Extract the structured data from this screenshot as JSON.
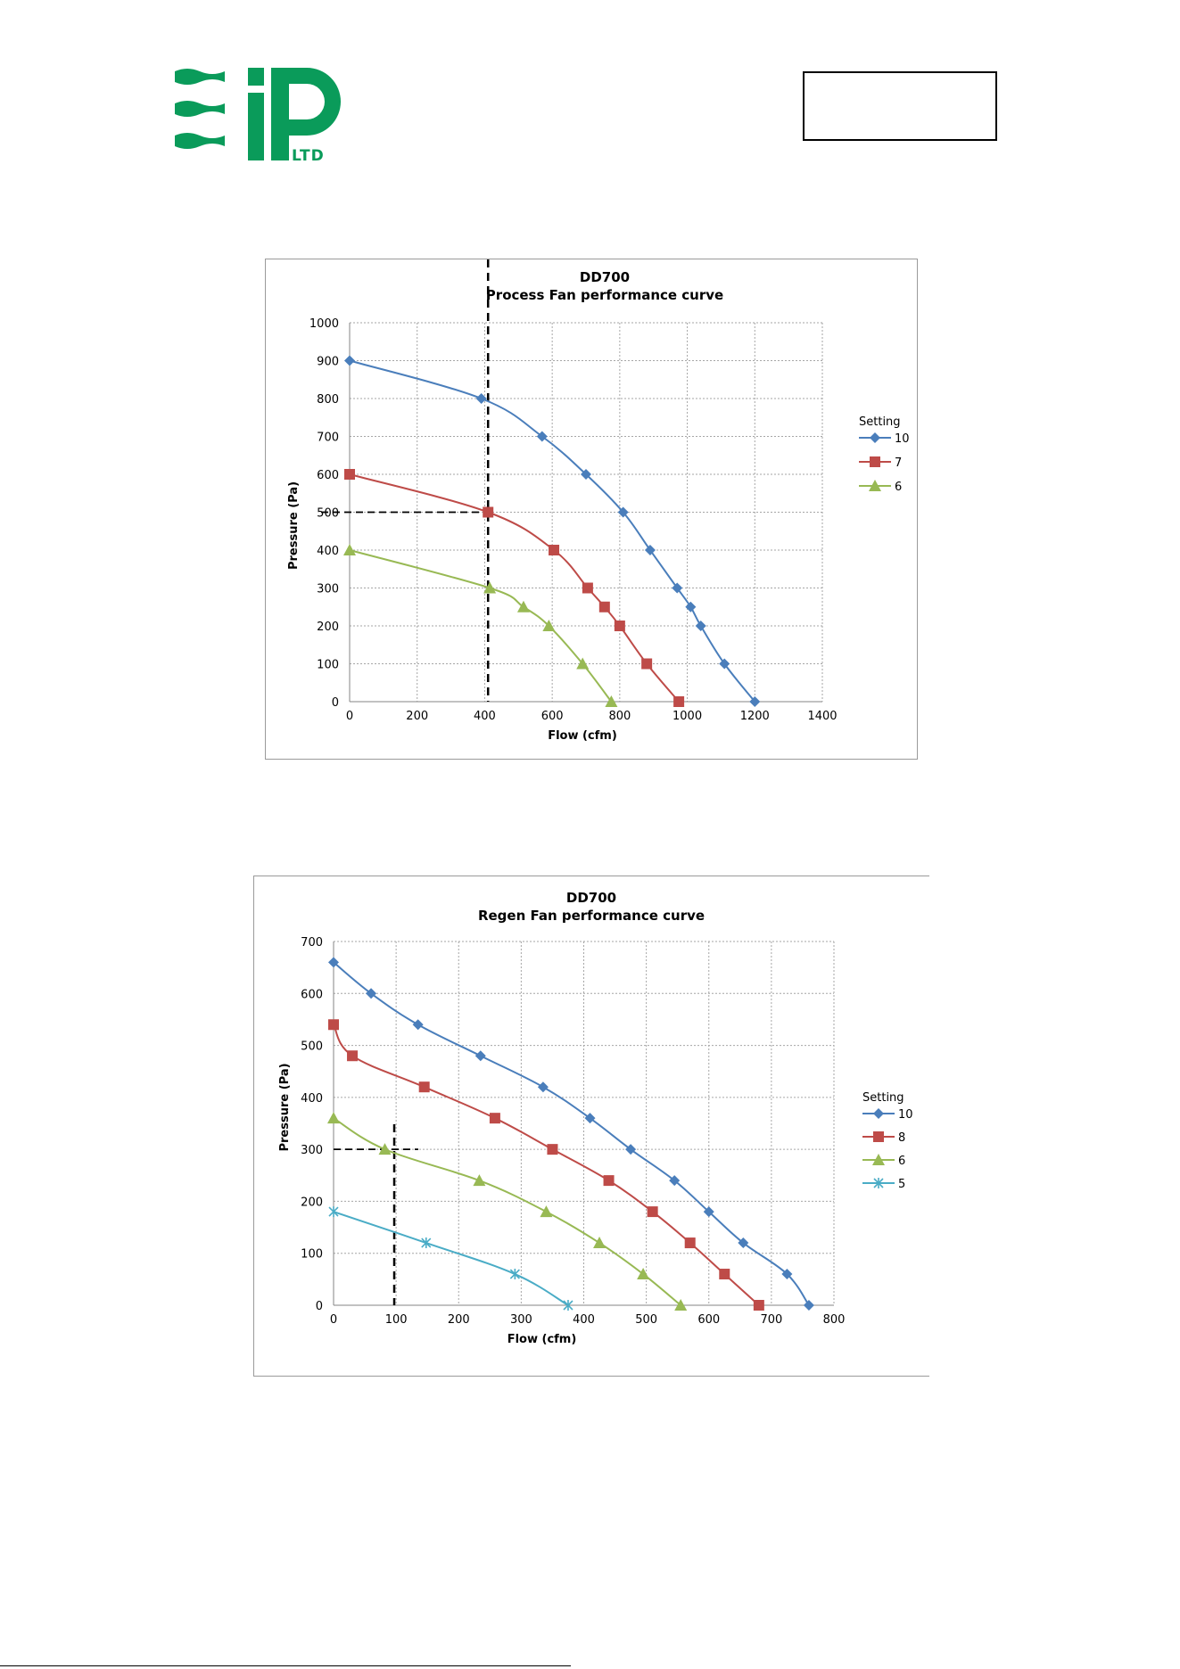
{
  "header": {
    "logo_text": "LTD",
    "brand_color": "#0a9b5a"
  },
  "colors": {
    "series_blue": "#4a7ebb",
    "series_red": "#be4b48",
    "series_green": "#98b954",
    "series_teal": "#4aacc6",
    "grid": "#a6a6a6"
  },
  "chart_data": [
    {
      "type": "line",
      "title": "DD700",
      "subtitle": "Process Fan performance curve",
      "xlabel": "Flow (cfm)",
      "ylabel": "Pressure (Pa)",
      "xlim": [
        0,
        1400
      ],
      "ylim": [
        0,
        1000
      ],
      "xticks": [
        0,
        200,
        400,
        600,
        800,
        1000,
        1200,
        1400
      ],
      "yticks": [
        0,
        100,
        200,
        300,
        400,
        500,
        600,
        700,
        800,
        900,
        1000
      ],
      "grid": true,
      "legend_title": "Setting",
      "legend_position": "right",
      "series": [
        {
          "name": "10",
          "color": "#4a7ebb",
          "marker": "diamond",
          "x": [
            0,
            390,
            570,
            700,
            810,
            890,
            970,
            1010,
            1040,
            1110,
            1200
          ],
          "y": [
            900,
            800,
            700,
            600,
            500,
            400,
            300,
            250,
            200,
            100,
            0
          ]
        },
        {
          "name": "7",
          "color": "#be4b48",
          "marker": "square",
          "x": [
            0,
            410,
            605,
            705,
            755,
            800,
            880,
            975
          ],
          "y": [
            600,
            500,
            400,
            300,
            250,
            200,
            100,
            0
          ]
        },
        {
          "name": "6",
          "color": "#98b954",
          "marker": "triangle",
          "x": [
            0,
            415,
            515,
            590,
            690,
            775
          ],
          "y": [
            400,
            300,
            250,
            200,
            100,
            0
          ]
        }
      ],
      "operating_point": {
        "x": 410,
        "y": 500
      }
    },
    {
      "type": "line",
      "title": "DD700",
      "subtitle": "Regen Fan performance curve",
      "xlabel": "Flow (cfm)",
      "ylabel": "Pressure (Pa)",
      "xlim": [
        0,
        800
      ],
      "ylim": [
        0,
        700
      ],
      "xticks": [
        0,
        100,
        200,
        300,
        400,
        500,
        600,
        700,
        800
      ],
      "yticks": [
        0,
        100,
        200,
        300,
        400,
        500,
        600,
        700
      ],
      "grid": true,
      "legend_title": "Setting",
      "legend_position": "right",
      "series": [
        {
          "name": "10",
          "color": "#4a7ebb",
          "marker": "diamond",
          "x": [
            0,
            60,
            135,
            235,
            335,
            410,
            475,
            545,
            600,
            655,
            725,
            760
          ],
          "y": [
            660,
            600,
            540,
            480,
            420,
            360,
            300,
            240,
            180,
            120,
            60,
            0
          ]
        },
        {
          "name": "8",
          "color": "#be4b48",
          "marker": "square",
          "x": [
            0,
            30,
            145,
            258,
            350,
            440,
            510,
            570,
            625,
            680
          ],
          "y": [
            540,
            480,
            420,
            360,
            300,
            240,
            180,
            120,
            60,
            0
          ]
        },
        {
          "name": "6",
          "color": "#98b954",
          "marker": "triangle",
          "x": [
            0,
            82,
            233,
            340,
            425,
            495,
            555
          ],
          "y": [
            360,
            300,
            240,
            180,
            120,
            60,
            0
          ]
        },
        {
          "name": "5",
          "color": "#4aacc6",
          "marker": "star",
          "x": [
            0,
            148,
            290,
            375
          ],
          "y": [
            180,
            120,
            60,
            0
          ]
        }
      ],
      "operating_point": {
        "x": 97,
        "y": 300
      }
    }
  ]
}
